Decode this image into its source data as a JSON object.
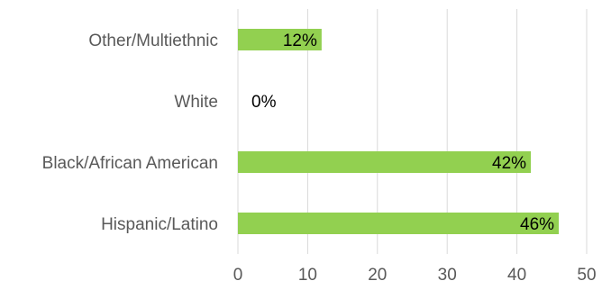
{
  "chart_data": {
    "type": "bar",
    "orientation": "horizontal",
    "categories": [
      "Other/Multiethnic",
      "White",
      "Black/African American",
      "Hispanic/Latino"
    ],
    "values": [
      12,
      0,
      42,
      46
    ],
    "data_labels": [
      "12%",
      "0%",
      "42%",
      "46%"
    ],
    "xlim": [
      0,
      50
    ],
    "x_ticks": [
      0,
      10,
      20,
      30,
      40,
      50
    ],
    "x_tick_labels": [
      "0",
      "10",
      "20",
      "30",
      "40",
      "50"
    ],
    "grid": "vertical",
    "legend": "none",
    "title": "",
    "xlabel": "",
    "ylabel": "",
    "bar_color": "#92d050"
  }
}
